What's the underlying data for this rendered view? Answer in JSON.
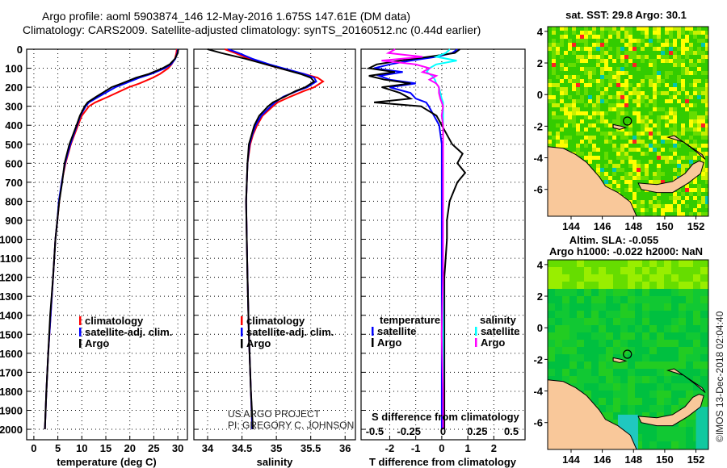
{
  "title": {
    "line1": "Argo profile: aoml 5903874_146 12-May-2016 1.675S 147.61E (DM data)",
    "line2": "Climatology: CARS2009. Satellite-adjusted climatology: synTS_20160512.nc (0.44d earlier)"
  },
  "colors": {
    "climatology": "#ff0000",
    "satellite": "#0000ff",
    "argo": "#000000",
    "sal_satellite": "#00ffff",
    "sal_argo": "#ff00ff"
  },
  "credits": {
    "project": "US ARGO PROJECT",
    "pi": "PI: GREGORY C. JOHNSON",
    "stamp": "©IMOS 13-Dec-2018 02:04:40"
  },
  "chart_data": [
    {
      "type": "line",
      "name": "temperature",
      "xlabel": "temperature (deg C)",
      "ylabel": "",
      "xlim": [
        -1.5,
        32
      ],
      "ylim": [
        2055,
        0
      ],
      "xticks": [
        "0",
        "5",
        "10",
        "15",
        "20",
        "25",
        "30"
      ],
      "yticks": [
        "0",
        "100",
        "200",
        "300",
        "400",
        "500",
        "600",
        "700",
        "800",
        "900",
        "1000",
        "1100",
        "1200",
        "1300",
        "1400",
        "1500",
        "1600",
        "1700",
        "1800",
        "1900",
        "2000"
      ],
      "depth": [
        0,
        20,
        50,
        80,
        100,
        130,
        150,
        180,
        200,
        250,
        280,
        300,
        350,
        400,
        500,
        600,
        700,
        800,
        900,
        1000,
        1200,
        1400,
        1600,
        1800,
        2000
      ],
      "series": [
        {
          "name": "climatology",
          "values": [
            29.8,
            29.7,
            29.4,
            28.7,
            28.0,
            26.3,
            24.8,
            22.0,
            19.8,
            15.5,
            12.8,
            11.5,
            10.0,
            9.2,
            7.7,
            6.6,
            5.8,
            5.3,
            4.9,
            4.5,
            4.0,
            3.5,
            3.0,
            2.6,
            2.3
          ]
        },
        {
          "name": "satellite-adj. clim.",
          "values": [
            30.0,
            29.9,
            29.5,
            28.6,
            27.3,
            24.5,
            22.0,
            19.0,
            17.0,
            13.5,
            11.5,
            10.8,
            9.7,
            9.0,
            7.6,
            6.5,
            5.8,
            5.2,
            4.9,
            4.5,
            4.0,
            3.5,
            3.0,
            2.6,
            2.3
          ]
        },
        {
          "name": "Argo",
          "values": [
            30.1,
            30.0,
            29.4,
            28.3,
            26.8,
            24.0,
            21.3,
            18.3,
            16.2,
            13.0,
            11.2,
            10.6,
            9.6,
            8.9,
            7.4,
            6.4,
            5.9,
            5.3,
            4.9,
            4.5,
            4.0,
            3.4,
            3.0,
            2.6,
            2.3
          ]
        }
      ],
      "legend": [
        "climatology",
        "satellite-adj. clim.",
        "Argo"
      ]
    },
    {
      "type": "line",
      "name": "salinity",
      "xlabel": "salinity",
      "xlim": [
        33.8,
        36.15
      ],
      "ylim": [
        2055,
        0
      ],
      "xticks": [
        "34",
        "34.5",
        "35",
        "35.5",
        "36"
      ],
      "depth": [
        0,
        20,
        50,
        80,
        100,
        130,
        150,
        170,
        200,
        220,
        250,
        280,
        300,
        350,
        400,
        450,
        500,
        600,
        800,
        1000,
        1200,
        1500,
        1800,
        2000
      ],
      "series": [
        {
          "name": "climatology",
          "values": [
            34.25,
            34.4,
            34.6,
            34.85,
            35.05,
            35.4,
            35.6,
            35.68,
            35.55,
            35.4,
            35.2,
            35.02,
            34.95,
            34.8,
            34.72,
            34.66,
            34.62,
            34.58,
            34.56,
            34.57,
            34.58,
            34.6,
            34.63,
            34.65
          ]
        },
        {
          "name": "satellite-adj. clim.",
          "values": [
            34.3,
            34.45,
            34.65,
            34.9,
            35.1,
            35.4,
            35.55,
            35.58,
            35.45,
            35.3,
            35.1,
            34.98,
            34.92,
            34.78,
            34.7,
            34.65,
            34.61,
            34.58,
            34.56,
            34.57,
            34.58,
            34.6,
            34.63,
            34.65
          ]
        },
        {
          "name": "Argo",
          "values": [
            34.0,
            34.2,
            34.55,
            34.85,
            35.05,
            35.35,
            35.5,
            35.55,
            35.42,
            35.28,
            35.12,
            34.95,
            34.88,
            34.75,
            34.68,
            34.64,
            34.6,
            34.58,
            34.56,
            34.57,
            34.58,
            34.6,
            34.63,
            34.66
          ]
        }
      ],
      "legend": [
        "climatology",
        "satellite-adj. clim.",
        "Argo"
      ]
    },
    {
      "type": "line",
      "name": "difference",
      "xlabel": "T difference from climatology",
      "x2label": "S difference from climatology",
      "xlim": [
        -3.1,
        3.2
      ],
      "x2lim": [
        -0.6,
        0.6
      ],
      "ylim": [
        2055,
        0
      ],
      "xticks": [
        "-2",
        "-1",
        "0",
        "1",
        "2"
      ],
      "x2ticks": [
        "-0.5",
        "-0.25",
        "0",
        "0.25",
        "0.5"
      ],
      "depth": [
        0,
        20,
        40,
        60,
        80,
        100,
        120,
        140,
        160,
        180,
        200,
        230,
        260,
        280,
        300,
        350,
        400,
        500,
        550,
        600,
        650,
        700,
        800,
        900,
        1000,
        1200,
        1500,
        1800,
        2000
      ],
      "series": [
        {
          "name": "temperature satellite",
          "axis": "T",
          "values": [
            0.6,
            0.4,
            -0.2,
            -1.2,
            -2.0,
            -2.6,
            -1.5,
            -2.4,
            -2.0,
            -1.0,
            -2.0,
            -1.2,
            -1.0,
            -0.6,
            -0.5,
            -0.3,
            -0.1,
            0.0,
            0.0,
            0.0,
            0.0,
            0.0,
            0.0,
            0.0,
            0.0,
            0.0,
            0.0,
            0.0,
            0.0
          ]
        },
        {
          "name": "temperature Argo",
          "axis": "T",
          "values": [
            0.7,
            0.5,
            -0.5,
            -1.6,
            -2.5,
            -2.8,
            -1.8,
            -2.8,
            -2.2,
            -1.2,
            -2.3,
            -1.6,
            -1.2,
            -2.6,
            -0.8,
            -0.2,
            0.0,
            0.4,
            0.8,
            0.6,
            0.9,
            0.6,
            0.3,
            0.2,
            0.2,
            0.1,
            0.1,
            0.1,
            0.1
          ]
        },
        {
          "name": "salinity satellite",
          "axis": "S",
          "values": [
            0.05,
            0.02,
            -0.05,
            0.1,
            -0.05,
            -0.1,
            -0.12,
            -0.08,
            -0.06,
            -0.05,
            -0.03,
            -0.02,
            -0.01,
            0.0,
            0.0,
            0.0,
            0.0,
            0.0,
            0.0,
            0.0,
            0.0,
            0.0,
            0.0,
            0.0,
            0.0,
            0.0,
            0.0,
            0.0,
            0.0
          ]
        },
        {
          "name": "salinity Argo",
          "axis": "S",
          "values": [
            -0.35,
            -0.4,
            -0.15,
            -0.45,
            -0.2,
            -0.1,
            -0.15,
            -0.05,
            -0.1,
            -0.05,
            -0.03,
            -0.03,
            -0.02,
            -0.01,
            0.0,
            -0.01,
            0.0,
            0.0,
            0.0,
            0.0,
            0.0,
            0.0,
            0.0,
            0.0,
            0.0,
            0.0,
            -0.01,
            0.0,
            0.0
          ]
        }
      ],
      "legend_left": {
        "title": "temperature",
        "items": [
          "satellite",
          "Argo"
        ]
      },
      "legend_right": {
        "title": "salinity",
        "items": [
          "satellite",
          "Argo"
        ]
      }
    },
    {
      "type": "heatmap",
      "name": "sst-map",
      "title": "sat. SST: 29.8 Argo: 30.1",
      "xlim": [
        142.5,
        152.8
      ],
      "ylim": [
        -7.7,
        4.3
      ],
      "xticks": [
        "144",
        "146",
        "148",
        "150",
        "152"
      ],
      "yticks": [
        "4",
        "2",
        "0",
        "-2",
        "-4",
        "-6"
      ],
      "argo_position": [
        147.61,
        -1.675
      ]
    },
    {
      "type": "heatmap",
      "name": "sla-map",
      "title": "Altim. SLA: -0.055",
      "subtitle": "Argo h1000: -0.022 h2000: NaN",
      "xlim": [
        142.5,
        152.8
      ],
      "ylim": [
        -7.7,
        4.3
      ],
      "xticks": [
        "144",
        "146",
        "148",
        "150",
        "152"
      ],
      "yticks": [
        "4",
        "2",
        "0",
        "-2",
        "-4",
        "-6"
      ],
      "argo_position": [
        147.61,
        -1.675
      ]
    }
  ]
}
